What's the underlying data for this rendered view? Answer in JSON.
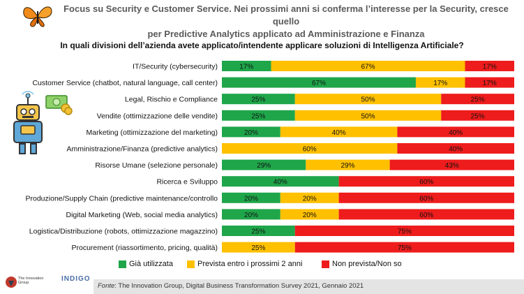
{
  "header": {
    "headline_line1": "Focus su Security e Customer Service. Nei prossimi anni si conferma l’interesse per la Security, cresce quello",
    "headline_line2": "per Predictive Analytics applicato ad Amministrazione e Finanza"
  },
  "chart_data": {
    "type": "bar",
    "orientation": "horizontal",
    "stacked": true,
    "percent_stacked": true,
    "title": "In quali divisioni dell’azienda avete applicato/intendente applicare soluzioni di Intelligenza Artificiale?",
    "categories": [
      "IT/Security (cybersecurity)",
      "Customer Service (chatbot, natural language, call center)",
      "Legal, Rischio e Compliance",
      "Vendite (ottimizzazione delle vendite)",
      "Marketing (ottimizzazione del marketing)",
      "Amministrazione/Finanza (predictive analytics)",
      "Risorse Umane (selezione personale)",
      "Ricerca e Sviluppo",
      "Produzione/Supply Chain (predictive maintenance/controllo",
      "Digital Marketing (Web, social media analytics)",
      "Logistica/Distribuzione (robots, ottimizzazione magazzino)",
      "Procurement (riassortimento, pricing, qualità)"
    ],
    "series": [
      {
        "name": "Già utilizzata",
        "color": "#1fa64a",
        "values": [
          17,
          67,
          25,
          25,
          20,
          0,
          29,
          40,
          20,
          20,
          25,
          0
        ]
      },
      {
        "name": "Prevista entro i prossimi 2 anni",
        "color": "#ffc000",
        "values": [
          67,
          17,
          50,
          50,
          40,
          60,
          29,
          0,
          20,
          20,
          0,
          25
        ]
      },
      {
        "name": "Non prevista/Non so",
        "color": "#ee1c1c",
        "values": [
          17,
          17,
          25,
          25,
          40,
          40,
          43,
          60,
          60,
          60,
          75,
          75
        ]
      }
    ],
    "value_suffix": "%",
    "legend_position": "bottom",
    "grid": false
  },
  "footer": {
    "source_label": "Fonte",
    "source_text": ": The Innovation Group, Digital Business Transformation Survey 2021, Gennaio 2021",
    "logo1_text": "The Innovation Group",
    "logo2_text": "INDIGO"
  },
  "icons": [
    "butterfly-icon",
    "robot-icon",
    "money-icon"
  ]
}
